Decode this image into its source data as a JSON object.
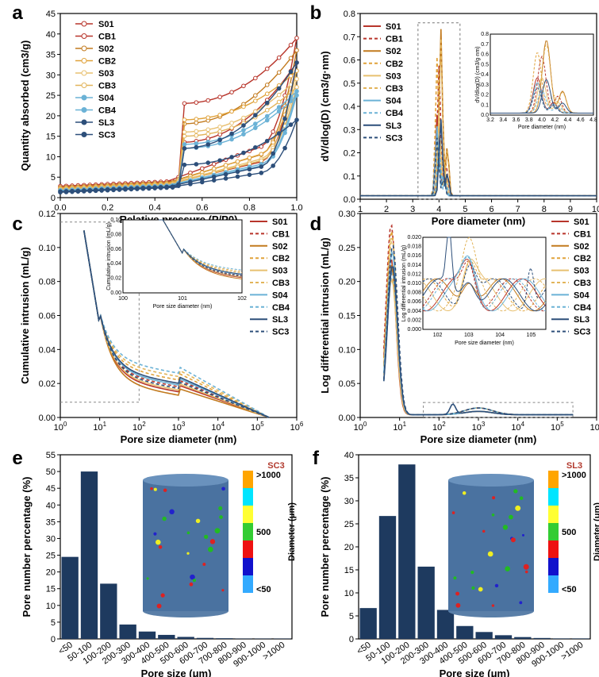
{
  "colors": {
    "S01": "#b8352b",
    "CB1": "#b8352b",
    "S02": "#c27a1e",
    "CB2": "#e0a23a",
    "S03": "#e8c070",
    "CB3": "#e2b45a",
    "S04": "#6bb2d6",
    "CB4": "#6bb2d6",
    "SL3": "#2d4f7a",
    "SC3": "#2d4f7a",
    "bar": "#1e3a5f"
  },
  "legend_names": [
    "S01",
    "CB1",
    "S02",
    "CB2",
    "S03",
    "CB3",
    "S04",
    "CB4",
    "SL3",
    "SC3"
  ],
  "scale_labels": {
    "top": ">1000",
    "mid": "500",
    "bot": "<50",
    "axis": "Diameter (μm)"
  },
  "panels": {
    "a": "a",
    "b": "b",
    "c": "c",
    "d": "d",
    "e": "e",
    "f": "f"
  },
  "chart_data": [
    {
      "type": "line",
      "panel": "a",
      "xlabel": "Relative pressure (P/P0)",
      "ylabel": "Quantity absorbed (cm3/g)",
      "xlim": [
        0,
        1
      ],
      "ylim": [
        0,
        45
      ],
      "xticks": [
        "0.0",
        "0.2",
        "0.4",
        "0.6",
        "0.8",
        "1.0"
      ],
      "yticks": [
        "0",
        "5",
        "10",
        "15",
        "20",
        "25",
        "30",
        "35",
        "40",
        "45"
      ],
      "series": [
        {
          "name": "S01",
          "y_ads_end": 33,
          "y_des_plateau": 13.5,
          "base": 2.2,
          "marker": "square-open"
        },
        {
          "name": "CB1",
          "y_ads_end": 39,
          "y_des_plateau": 23,
          "base": 2.8,
          "marker": "circle-open"
        },
        {
          "name": "S02",
          "y_ads_end": 36,
          "y_des_plateau": 18,
          "base": 2.5,
          "marker": "triangle-open"
        },
        {
          "name": "CB2",
          "y_ads_end": 31,
          "y_des_plateau": 19,
          "base": 2.3,
          "marker": "triangle-down-open"
        },
        {
          "name": "S03",
          "y_ads_end": 29,
          "y_des_plateau": 16,
          "base": 2.1,
          "marker": "diamond-open"
        },
        {
          "name": "CB3",
          "y_ads_end": 27,
          "y_des_plateau": 15,
          "base": 2.0,
          "marker": "triangle-left-open"
        },
        {
          "name": "S04",
          "y_ads_end": 26,
          "y_des_plateau": 13,
          "base": 1.8,
          "marker": "triangle-right"
        },
        {
          "name": "CB4",
          "y_ads_end": 25,
          "y_des_plateau": 12,
          "base": 1.7,
          "marker": "hexagon"
        },
        {
          "name": "SL3",
          "y_ads_end": 33,
          "y_des_plateau": 12,
          "base": 1.5,
          "marker": "circle"
        },
        {
          "name": "SC3",
          "y_ads_end": 19,
          "y_des_plateau": 8,
          "base": 1.3,
          "marker": "square"
        }
      ]
    },
    {
      "type": "line",
      "panel": "b",
      "xlabel": "Pore diameter (nm)",
      "ylabel": "dV/dlog(D) (cm3/g·nm)",
      "xlim": [
        1,
        10
      ],
      "ylim": [
        0,
        0.8
      ],
      "xticks": [
        "1",
        "2",
        "3",
        "4",
        "5",
        "6",
        "7",
        "8",
        "9",
        "10"
      ],
      "yticks": [
        "0.0",
        "0.1",
        "0.2",
        "0.3",
        "0.4",
        "0.5",
        "0.6",
        "0.7",
        "0.8"
      ],
      "peaks": {
        "S01": 0.35,
        "CB1": 0.56,
        "S02": 0.72,
        "CB2": 0.6,
        "S03": 0.35,
        "CB3": 0.68,
        "S04": 0.3,
        "CB4": 0.22,
        "SL3": 0.33,
        "SC3": 0.25
      },
      "inset": {
        "xlabel": "Pore diameter (nm)",
        "ylabel": "dV/dlog(D) (cm3/g·nm)",
        "xlim": [
          3.2,
          4.8
        ],
        "ylim": [
          0,
          0.8
        ],
        "xticks": [
          "3.2",
          "3.4",
          "3.6",
          "3.8",
          "4.0",
          "4.2",
          "4.4",
          "4.6",
          "4.8"
        ],
        "yticks": [
          "0.0",
          "0.1",
          "0.2",
          "0.3",
          "0.4",
          "0.5",
          "0.6",
          "0.7",
          "0.8"
        ]
      }
    },
    {
      "type": "line",
      "panel": "c",
      "xlabel": "Pore size diameter (nm)",
      "ylabel": "Cumulative intrusion (mL/g)",
      "xscale": "log",
      "xlim": [
        1,
        1000000
      ],
      "ylim": [
        0,
        0.12
      ],
      "xticks": [
        "10^0",
        "10^1",
        "10^2",
        "10^3",
        "10^4",
        "10^5",
        "10^6"
      ],
      "yticks": [
        "0.00",
        "0.02",
        "0.04",
        "0.06",
        "0.08",
        "0.10",
        "0.12"
      ],
      "plateau": {
        "S01": 0.015,
        "CB1": 0.018,
        "S02": 0.013,
        "CB2": 0.022,
        "S03": 0.016,
        "CB3": 0.024,
        "S04": 0.019,
        "CB4": 0.026,
        "SL3": 0.02,
        "SC3": 0.017
      },
      "inset": {
        "xlabel": "Pore size diameter (nm)",
        "ylabel": "Cumulative intrusion (mL/g)",
        "xlim": [
          1,
          100
        ],
        "ylim": [
          0,
          0.1
        ],
        "xticks": [
          "10^0",
          "10^1",
          "10^2"
        ],
        "yticks": [
          "0.00",
          "0.02",
          "0.04",
          "0.06",
          "0.08",
          "0.10"
        ]
      }
    },
    {
      "type": "line",
      "panel": "d",
      "xlabel": "Pore size diameter (nm)",
      "ylabel": "Log differential intrusion (mL/g)",
      "xscale": "log",
      "xlim": [
        1,
        1000000
      ],
      "ylim": [
        0,
        0.3
      ],
      "xticks": [
        "10^0",
        "10^1",
        "10^2",
        "10^3",
        "10^4",
        "10^5",
        "10^6"
      ],
      "yticks": [
        "0.00",
        "0.05",
        "0.10",
        "0.15",
        "0.20",
        "0.25",
        "0.30"
      ],
      "peaks": {
        "S01": 0.23,
        "CB1": 0.28,
        "S02": 0.22,
        "CB2": 0.27,
        "S03": 0.2,
        "CB3": 0.26,
        "S04": 0.24,
        "CB4": 0.21,
        "SL3": 0.22,
        "SC3": 0.25
      },
      "inset": {
        "xlabel": "Pore size diameter (nm)",
        "ylabel": "Log differential intrusion (mL/g)",
        "xlim": [
          30,
          300000
        ],
        "ylim": [
          0,
          0.02
        ],
        "xticks": [
          "10^2",
          "10^3",
          "10^4",
          "10^5"
        ],
        "yticks": [
          "0.000",
          "0.002",
          "0.004",
          "0.006",
          "0.008",
          "0.010",
          "0.012",
          "0.014",
          "0.016",
          "0.018",
          "0.020"
        ]
      }
    },
    {
      "type": "bar",
      "panel": "e",
      "tag": "SC3",
      "xlabel": "Pore size (μm)",
      "ylabel": "Pore number percentage (%)",
      "ylim": [
        0,
        55
      ],
      "yticks": [
        "0",
        "5",
        "10",
        "15",
        "20",
        "25",
        "30",
        "35",
        "40",
        "45",
        "50",
        "55"
      ],
      "categories": [
        "<50",
        "50-100",
        "100-200",
        "200-300",
        "300-400",
        "400-500",
        "500-600",
        "600-700",
        "700-800",
        "800-900",
        "900-1000",
        ">1000"
      ],
      "values": [
        24.5,
        50.0,
        16.5,
        4.3,
        2.2,
        1.2,
        0.6,
        0.3,
        0.2,
        0.1,
        0.1,
        0.1
      ]
    },
    {
      "type": "bar",
      "panel": "f",
      "tag": "SL3",
      "xlabel": "Pore size (μm)",
      "ylabel": "Pore number percentage (%)",
      "ylim": [
        0,
        40
      ],
      "yticks": [
        "0",
        "5",
        "10",
        "15",
        "20",
        "25",
        "30",
        "35",
        "40"
      ],
      "categories": [
        "<50",
        "50-100",
        "100-200",
        "200-300",
        "300-400",
        "400-500",
        "500-600",
        "600-700",
        "700-800",
        "800-900",
        "900-1000",
        ">1000"
      ],
      "values": [
        6.7,
        26.7,
        37.9,
        15.7,
        6.3,
        2.8,
        1.5,
        0.8,
        0.4,
        0.2,
        0.1,
        0.1
      ]
    }
  ]
}
